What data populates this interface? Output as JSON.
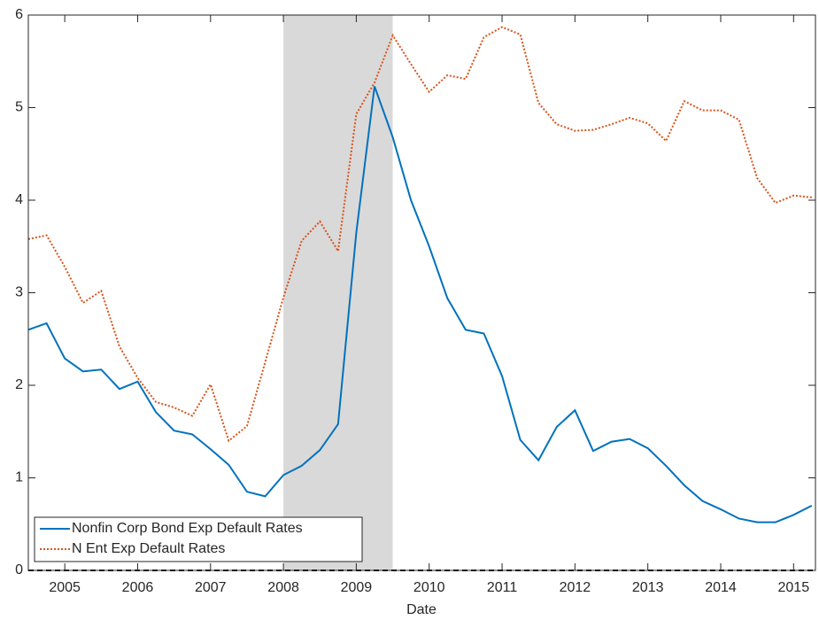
{
  "chart_data": {
    "type": "line",
    "x_label": "Date",
    "x": [
      2004.5,
      2004.75,
      2005,
      2005.25,
      2005.5,
      2005.75,
      2006,
      2006.25,
      2006.5,
      2006.75,
      2007,
      2007.25,
      2007.5,
      2007.75,
      2008,
      2008.25,
      2008.5,
      2008.75,
      2009,
      2009.25,
      2009.5,
      2009.75,
      2010,
      2010.25,
      2010.5,
      2010.75,
      2011,
      2011.25,
      2011.5,
      2011.75,
      2012,
      2012.25,
      2012.5,
      2012.75,
      2013,
      2013.25,
      2013.5,
      2013.75,
      2014,
      2014.25,
      2014.5,
      2014.75,
      2015,
      2015.25
    ],
    "series": [
      {
        "name": "Nonfin Corp Bond Exp Default Rates",
        "color": "#0072bd",
        "dash": "solid",
        "values": [
          2.6,
          2.67,
          2.29,
          2.15,
          2.17,
          1.96,
          2.04,
          1.71,
          1.51,
          1.47,
          1.31,
          1.14,
          0.85,
          0.8,
          1.03,
          1.13,
          1.3,
          1.58,
          3.65,
          5.23,
          4.68,
          4.0,
          3.5,
          2.94,
          2.6,
          2.56,
          2.1,
          1.41,
          1.19,
          1.55,
          1.73,
          1.29,
          1.39,
          1.42,
          1.32,
          1.13,
          0.92,
          0.75,
          0.66,
          0.56,
          0.52,
          0.52,
          0.6,
          0.7
        ]
      },
      {
        "name": "N Ent Exp Default Rates",
        "color": "#d95319",
        "dash": "dotted",
        "values": [
          3.58,
          3.62,
          3.28,
          2.89,
          3.02,
          2.42,
          2.08,
          1.82,
          1.76,
          1.67,
          2.01,
          1.4,
          1.56,
          2.25,
          2.95,
          3.56,
          3.77,
          3.45,
          4.93,
          5.27,
          5.78,
          5.47,
          5.17,
          5.35,
          5.31,
          5.76,
          5.87,
          5.79,
          5.05,
          4.82,
          4.75,
          4.76,
          4.82,
          4.89,
          4.83,
          4.64,
          5.07,
          4.97,
          4.97,
          4.87,
          4.24,
          3.97,
          4.05,
          4.03
        ]
      }
    ],
    "shade": [
      2008,
      2009.5
    ],
    "shade_color": "#d9d9d9",
    "hline": 0,
    "xlim": [
      2004.5,
      2015.3
    ],
    "xticks": [
      2005,
      2006,
      2007,
      2008,
      2009,
      2010,
      2011,
      2012,
      2013,
      2014,
      2015
    ],
    "ylim": [
      0,
      6
    ],
    "yticks": [
      0,
      1,
      2,
      3,
      4,
      5,
      6
    ],
    "legend": "lower left"
  }
}
